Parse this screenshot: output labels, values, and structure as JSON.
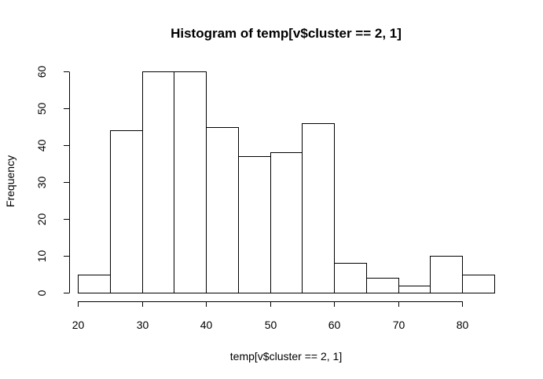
{
  "chart_data": {
    "type": "bar",
    "title": "Histogram of temp[v$cluster == 2, 1]",
    "xlabel": "temp[v$cluster == 2, 1]",
    "ylabel": "Frequency",
    "bin_edges": [
      20,
      25,
      30,
      35,
      40,
      45,
      50,
      55,
      60,
      65,
      70,
      75,
      80,
      85
    ],
    "values": [
      5,
      44,
      60,
      60,
      45,
      37,
      38,
      46,
      8,
      4,
      2,
      10,
      5
    ],
    "xlim": [
      20,
      85
    ],
    "ylim": [
      0,
      60
    ],
    "x_ticks": [
      20,
      30,
      40,
      50,
      60,
      70,
      80
    ],
    "y_ticks": [
      0,
      10,
      20,
      30,
      40,
      50,
      60
    ],
    "bar_fill": "#ffffff",
    "bar_stroke": "#000000",
    "grid": false,
    "legend": "none"
  }
}
